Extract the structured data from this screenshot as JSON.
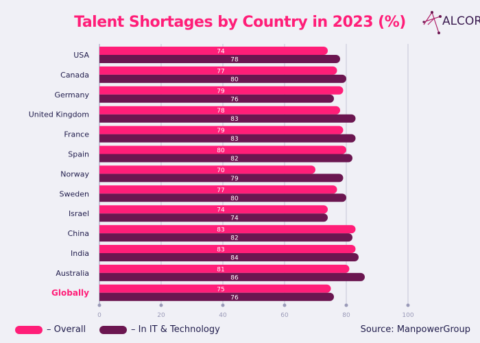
{
  "logo": {
    "text": "ALCOR"
  },
  "chart_data": {
    "type": "bar",
    "orientation": "horizontal",
    "title": "Talent Shortages by Country in 2023 (%)",
    "categories": [
      "USA",
      "Canada",
      "Germany",
      "United Kingdom",
      "France",
      "Spain",
      "Norway",
      "Sweden",
      "Israel",
      "China",
      "India",
      "Australia",
      "Globally"
    ],
    "series": [
      {
        "name": "– Overall",
        "color": "#ff1e78",
        "values": [
          74,
          77,
          79,
          78,
          79,
          80,
          70,
          77,
          74,
          83,
          83,
          81,
          75
        ]
      },
      {
        "name": "– In IT & Technology",
        "color": "#6b1650",
        "values": [
          78,
          80,
          76,
          83,
          83,
          82,
          79,
          80,
          74,
          82,
          84,
          86,
          76
        ]
      }
    ],
    "xlim": [
      0,
      100
    ],
    "xticks": [
      "0",
      "20",
      "40",
      "60",
      "80",
      "100"
    ],
    "grid": true,
    "legend": "bottom-left",
    "highlight_category_color": "#ff1e78"
  },
  "source": "Source: ManpowerGroup"
}
